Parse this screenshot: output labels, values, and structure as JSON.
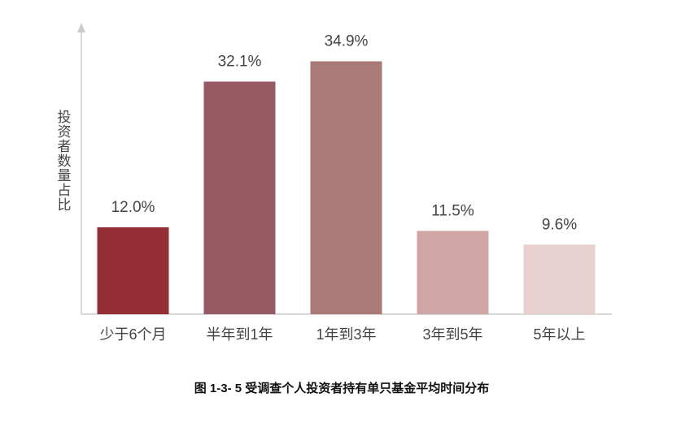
{
  "chart_data": {
    "type": "bar",
    "title": "图 1-3- 5 受调查个人投资者持有单只基金平均时间分布",
    "y_label": "投资者数量占比",
    "categories": [
      "少于6个月",
      "半年到1年",
      "1年到3年",
      "3年到5年",
      "5年以上"
    ],
    "values": [
      12.0,
      32.1,
      34.9,
      11.5,
      9.6
    ],
    "value_labels": [
      "12.0%",
      "32.1%",
      "34.9%",
      "11.5%",
      "9.6%"
    ],
    "colors": [
      "#952f37",
      "#975a65",
      "#a97a77",
      "#d0a5a5",
      "#e6d0d0"
    ],
    "ylim": [
      0,
      40
    ]
  }
}
